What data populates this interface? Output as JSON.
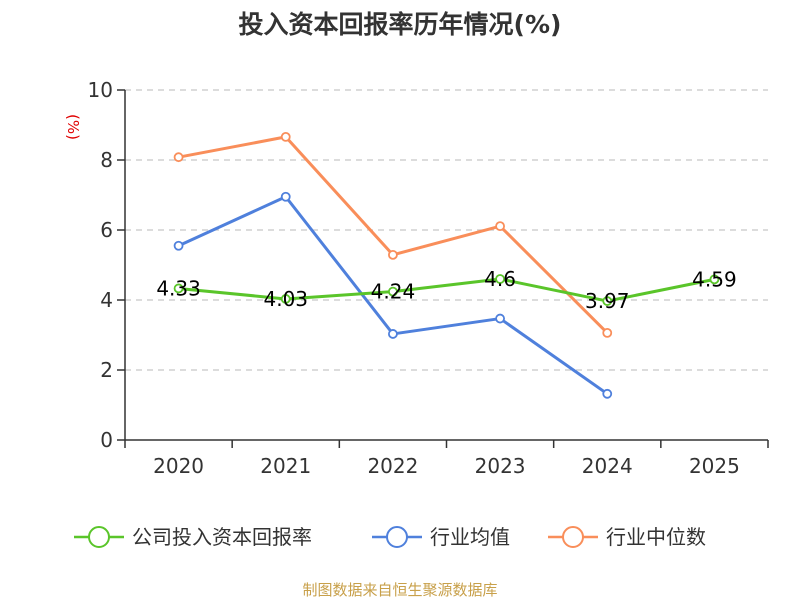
{
  "colors": {
    "company": "#5ac52a",
    "avg": "#4f80dc",
    "median": "#f98e5a",
    "unit": "#e00000",
    "source": "#c8a04a"
  },
  "chart_data": {
    "type": "line",
    "title": "投入资本回报率历年情况(%)",
    "ylabel": "(%)",
    "categories": [
      "2020",
      "2021",
      "2022",
      "2023",
      "2024",
      "2025"
    ],
    "ylim": [
      0,
      10
    ],
    "yticks": [
      0,
      2,
      4,
      6,
      8,
      10
    ],
    "grid": true,
    "legend_position": "bottom",
    "series": [
      {
        "name": "公司投入资本回报率",
        "color_key": "company",
        "values": [
          4.33,
          4.03,
          4.24,
          4.6,
          3.97,
          4.59
        ],
        "labels": [
          "4.33",
          "4.03",
          "4.24",
          "4.6",
          "3.97",
          "4.59"
        ]
      },
      {
        "name": "行业均值",
        "color_key": "avg",
        "values": [
          5.55,
          6.95,
          3.03,
          3.47,
          1.32,
          null
        ]
      },
      {
        "name": "行业中位数",
        "color_key": "median",
        "values": [
          8.08,
          8.66,
          5.29,
          6.11,
          3.06,
          null
        ]
      }
    ],
    "source": "制图数据来自恒生聚源数据库"
  }
}
